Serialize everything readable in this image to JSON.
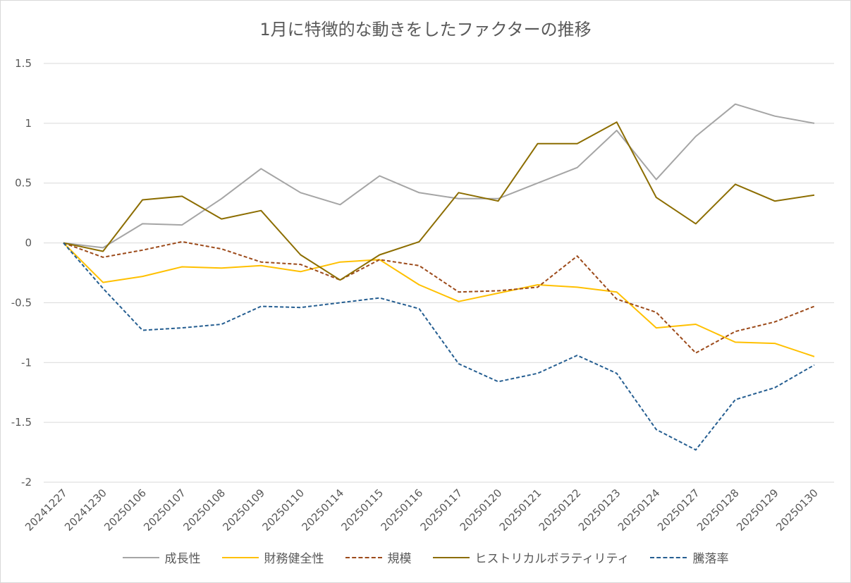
{
  "chart_data": {
    "type": "line",
    "title": "1月に特徴的な動きをしたファクターの推移",
    "xlabel": "",
    "ylabel": "",
    "ylim": [
      -2,
      1.5
    ],
    "yticks": [
      "1.5",
      "1",
      "0.5",
      "0",
      "-0.5",
      "-1",
      "-1.5",
      "-2"
    ],
    "ytick_values": [
      1.5,
      1,
      0.5,
      0,
      -0.5,
      -1,
      -1.5,
      -2
    ],
    "grid": true,
    "legend_position": "bottom",
    "categories": [
      "20241227",
      "20241230",
      "20250106",
      "20250107",
      "20250108",
      "20250109",
      "20250110",
      "20250114",
      "20250115",
      "20250116",
      "20250117",
      "20250120",
      "20250121",
      "20250122",
      "20250123",
      "20250124",
      "20250127",
      "20250128",
      "20250129",
      "20250130"
    ],
    "series": [
      {
        "name": "成長性",
        "color": "#a5a5a5",
        "dash": false,
        "values": [
          0,
          -0.04,
          0.16,
          0.15,
          0.37,
          0.62,
          0.42,
          0.32,
          0.56,
          0.42,
          0.37,
          0.37,
          0.5,
          0.63,
          0.94,
          0.53,
          0.89,
          1.16,
          1.06,
          1.0
        ]
      },
      {
        "name": "財務健全性",
        "color": "#ffc000",
        "dash": false,
        "values": [
          0,
          -0.33,
          -0.28,
          -0.2,
          -0.21,
          -0.19,
          -0.24,
          -0.16,
          -0.14,
          -0.35,
          -0.49,
          -0.42,
          -0.35,
          -0.37,
          -0.41,
          -0.71,
          -0.68,
          -0.83,
          -0.84,
          -0.95
        ]
      },
      {
        "name": "規模",
        "color": "#9c4a1a",
        "dash": true,
        "values": [
          0,
          -0.12,
          -0.06,
          0.01,
          -0.05,
          -0.16,
          -0.18,
          -0.31,
          -0.14,
          -0.19,
          -0.41,
          -0.4,
          -0.37,
          -0.11,
          -0.47,
          -0.58,
          -0.92,
          -0.74,
          -0.66,
          -0.53
        ]
      },
      {
        "name": "ヒストリカルボラティリティ",
        "color": "#8c6d00",
        "dash": false,
        "values": [
          0,
          -0.07,
          0.36,
          0.39,
          0.2,
          0.27,
          -0.1,
          -0.31,
          -0.1,
          0.01,
          0.42,
          0.35,
          0.83,
          0.83,
          1.01,
          0.38,
          0.16,
          0.49,
          0.35,
          0.4
        ]
      },
      {
        "name": "騰落率",
        "color": "#255e91",
        "dash": true,
        "values": [
          0,
          -0.38,
          -0.73,
          -0.71,
          -0.68,
          -0.53,
          -0.54,
          -0.5,
          -0.46,
          -0.55,
          -1.01,
          -1.16,
          -1.09,
          -0.94,
          -1.09,
          -1.56,
          -1.73,
          -1.31,
          -1.21,
          -1.02
        ]
      }
    ]
  }
}
